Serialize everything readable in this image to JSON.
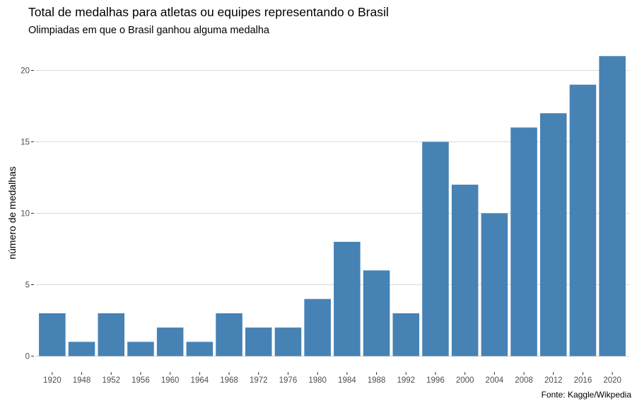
{
  "chart_data": {
    "type": "bar",
    "title": "Total de medalhas para atletas ou equipes representando o Brasil",
    "subtitle": "Olimpiadas em que o Brasil ganhou alguma medalha",
    "caption": "Fonte: Kaggle/Wikpedia",
    "xlabel": "",
    "ylabel": "número de medalhas",
    "categories": [
      "1920",
      "1948",
      "1952",
      "1956",
      "1960",
      "1964",
      "1968",
      "1972",
      "1976",
      "1980",
      "1984",
      "1988",
      "1992",
      "1996",
      "2000",
      "2004",
      "2008",
      "2012",
      "2016",
      "2020"
    ],
    "values": [
      3,
      1,
      3,
      1,
      2,
      1,
      3,
      2,
      2,
      4,
      8,
      6,
      3,
      15,
      12,
      10,
      16,
      17,
      19,
      21
    ],
    "ylim": [
      0,
      21
    ],
    "yticks": [
      0,
      5,
      10,
      15,
      20
    ],
    "grid": true,
    "bar_color": "#4682B4",
    "grid_color": "#d9d9d9"
  }
}
